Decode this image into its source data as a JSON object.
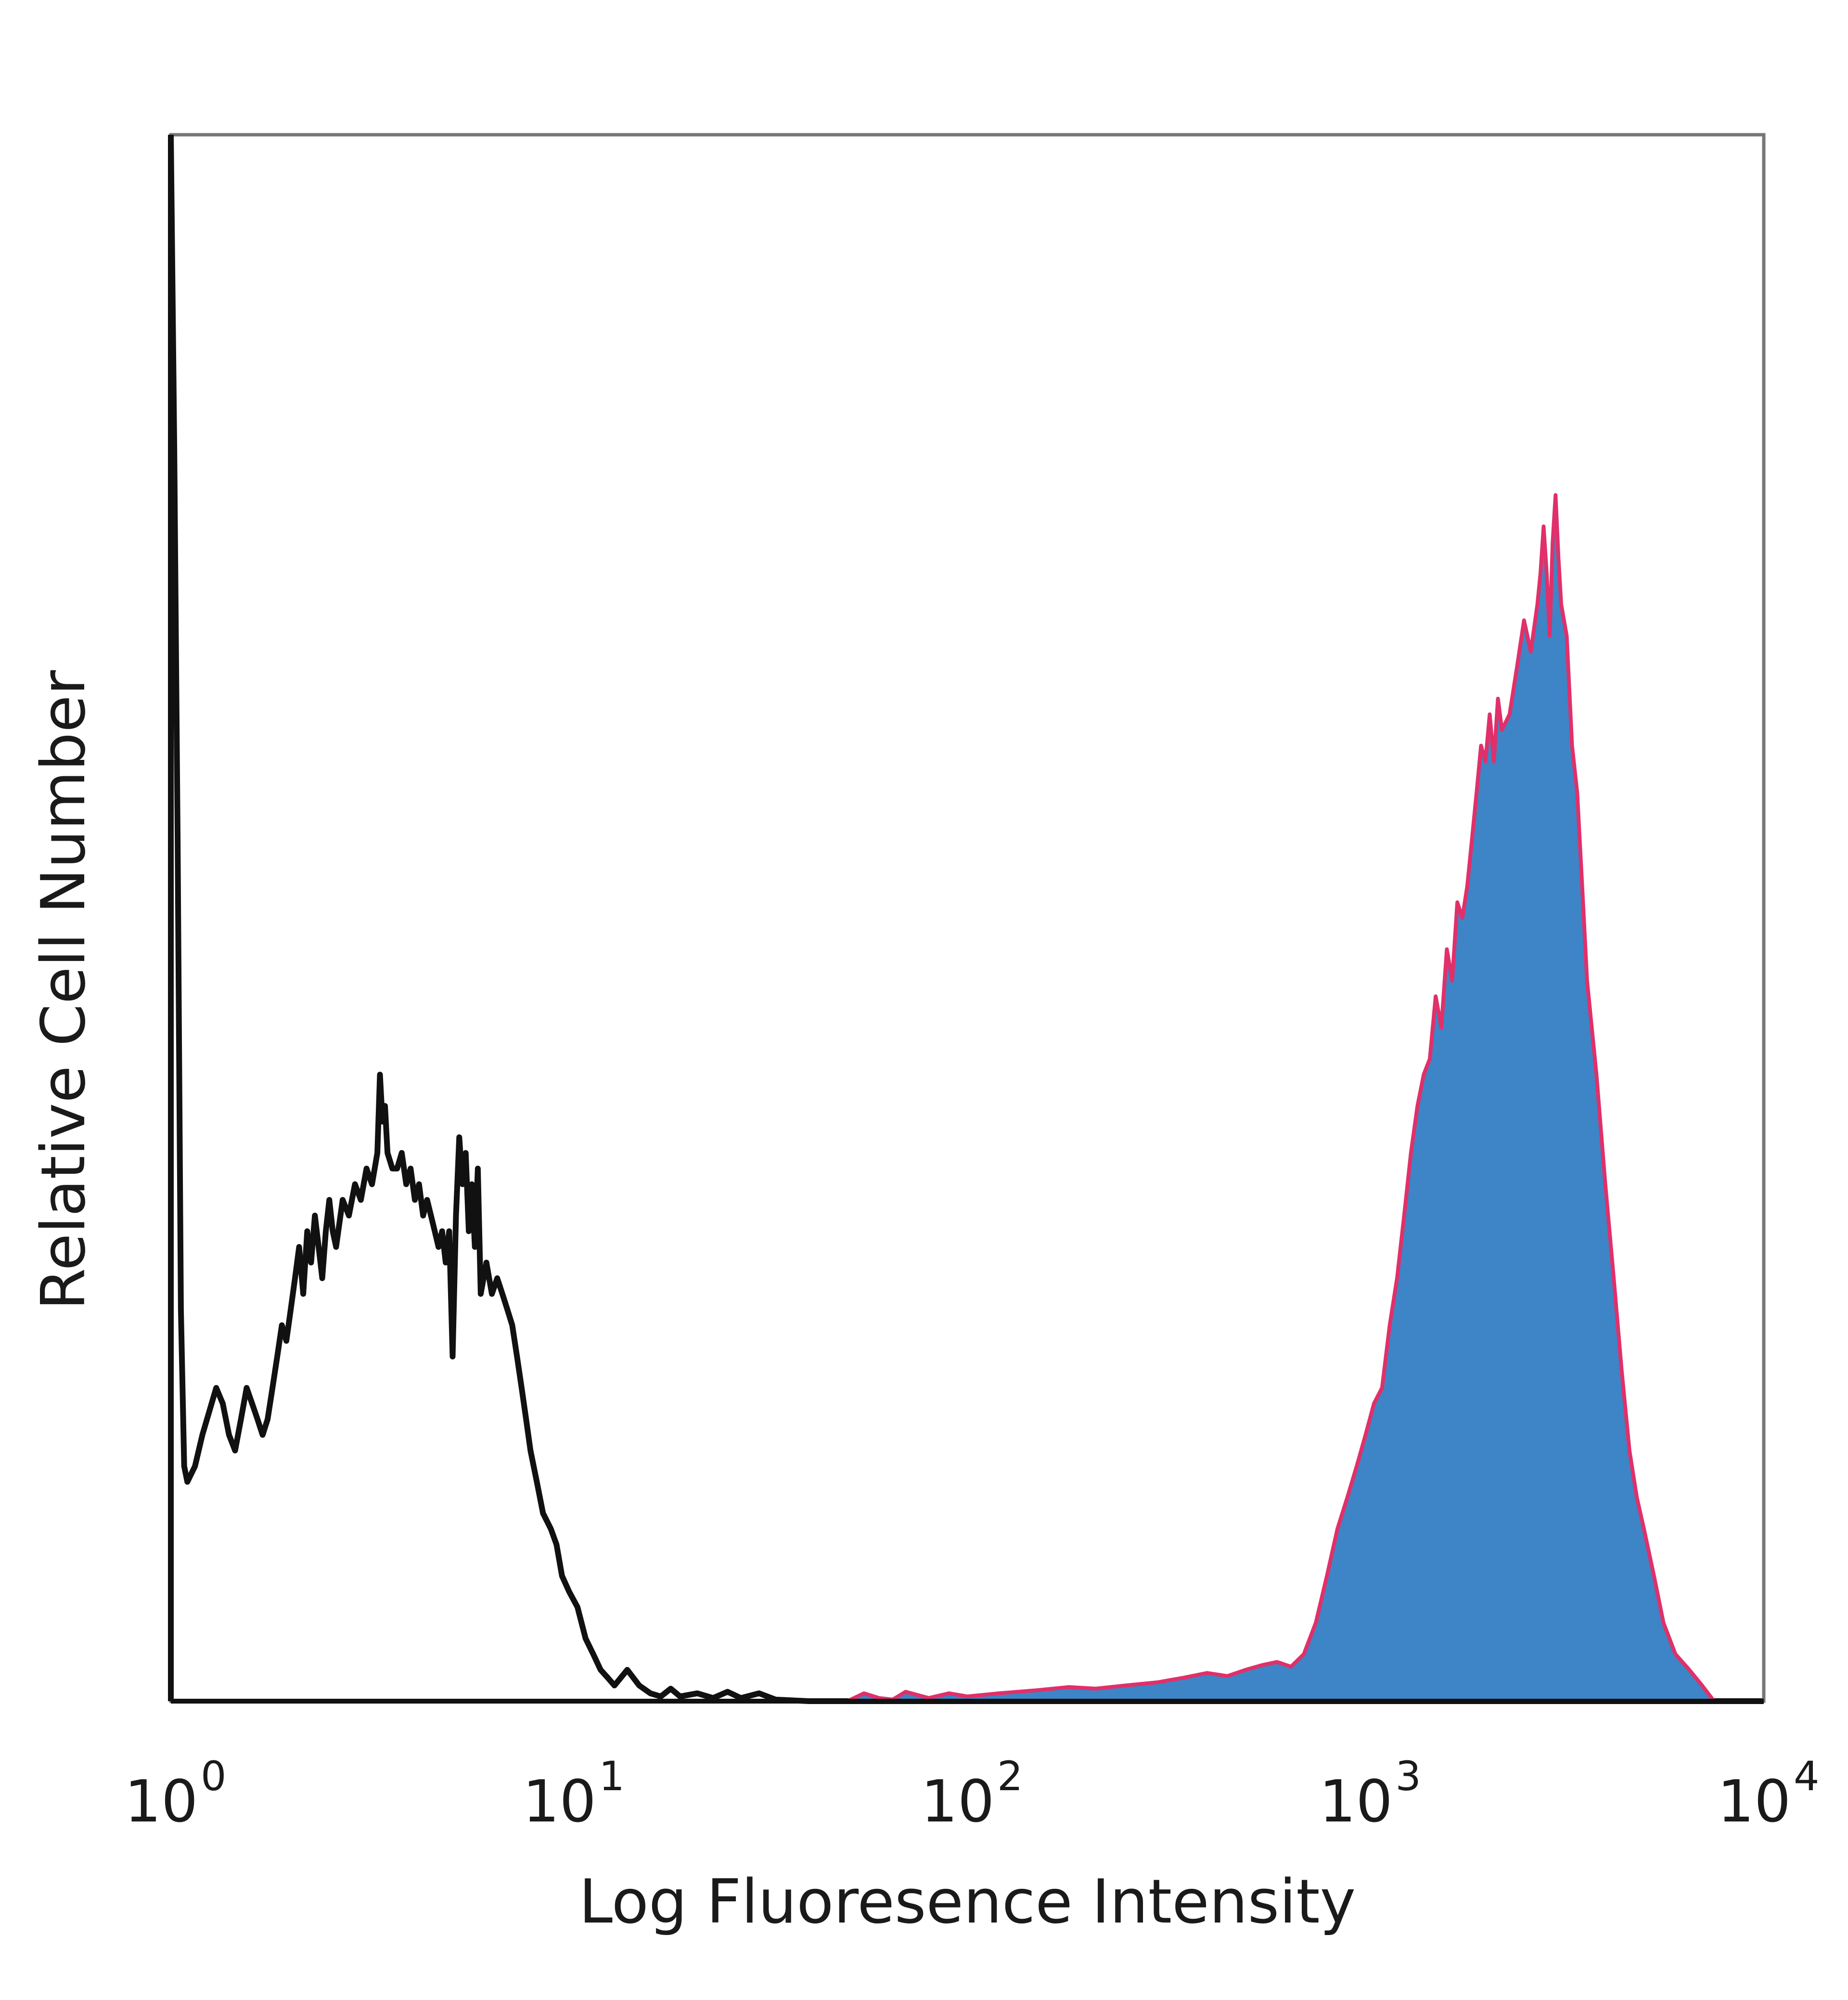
{
  "chart_data": {
    "type": "area",
    "title": "",
    "xlabel": "Log Fluoresence Intensity",
    "ylabel": "Relative Cell Number",
    "x_scale": "log",
    "xlim": [
      1,
      10000
    ],
    "ylim": [
      0,
      100
    ],
    "grid": false,
    "legend": "none",
    "x_ticks": [
      {
        "base": "10",
        "exp": "0",
        "value": 1
      },
      {
        "base": "10",
        "exp": "1",
        "value": 10
      },
      {
        "base": "10",
        "exp": "2",
        "value": 100
      },
      {
        "base": "10",
        "exp": "3",
        "value": 1000
      },
      {
        "base": "10",
        "exp": "4",
        "value": 10000
      }
    ],
    "series": [
      {
        "style": "outline",
        "color": "#111111",
        "points": [
          [
            1.0,
            100
          ],
          [
            1.02,
            80
          ],
          [
            1.04,
            55
          ],
          [
            1.06,
            25
          ],
          [
            1.08,
            15
          ],
          [
            1.1,
            14
          ],
          [
            1.15,
            15
          ],
          [
            1.2,
            17
          ],
          [
            1.3,
            20
          ],
          [
            1.35,
            19
          ],
          [
            1.4,
            17
          ],
          [
            1.45,
            16
          ],
          [
            1.5,
            18
          ],
          [
            1.55,
            20
          ],
          [
            1.6,
            19
          ],
          [
            1.65,
            18
          ],
          [
            1.7,
            17
          ],
          [
            1.75,
            18
          ],
          [
            1.8,
            20
          ],
          [
            1.85,
            22
          ],
          [
            1.9,
            24
          ],
          [
            1.95,
            23
          ],
          [
            2.0,
            25
          ],
          [
            2.05,
            27
          ],
          [
            2.1,
            29
          ],
          [
            2.15,
            26
          ],
          [
            2.2,
            30
          ],
          [
            2.25,
            28
          ],
          [
            2.3,
            31
          ],
          [
            2.35,
            29
          ],
          [
            2.4,
            27
          ],
          [
            2.45,
            30
          ],
          [
            2.5,
            32
          ],
          [
            2.55,
            30
          ],
          [
            2.6,
            29
          ],
          [
            2.7,
            32
          ],
          [
            2.8,
            31
          ],
          [
            2.9,
            33
          ],
          [
            3.0,
            32
          ],
          [
            3.1,
            34
          ],
          [
            3.2,
            33
          ],
          [
            3.3,
            35
          ],
          [
            3.35,
            40
          ],
          [
            3.4,
            37
          ],
          [
            3.45,
            38
          ],
          [
            3.5,
            35
          ],
          [
            3.6,
            34
          ],
          [
            3.7,
            34
          ],
          [
            3.8,
            35
          ],
          [
            3.9,
            33
          ],
          [
            4.0,
            34
          ],
          [
            4.1,
            32
          ],
          [
            4.2,
            33
          ],
          [
            4.3,
            31
          ],
          [
            4.4,
            32
          ],
          [
            4.5,
            31
          ],
          [
            4.6,
            30
          ],
          [
            4.7,
            29
          ],
          [
            4.8,
            30
          ],
          [
            4.9,
            28
          ],
          [
            5.0,
            30
          ],
          [
            5.1,
            22
          ],
          [
            5.2,
            31
          ],
          [
            5.3,
            36
          ],
          [
            5.4,
            33
          ],
          [
            5.5,
            35
          ],
          [
            5.6,
            30
          ],
          [
            5.7,
            33
          ],
          [
            5.8,
            29
          ],
          [
            5.9,
            34
          ],
          [
            6.0,
            26
          ],
          [
            6.2,
            28
          ],
          [
            6.4,
            26
          ],
          [
            6.6,
            27
          ],
          [
            6.8,
            26
          ],
          [
            7.0,
            25
          ],
          [
            7.2,
            24
          ],
          [
            7.4,
            22
          ],
          [
            7.6,
            20
          ],
          [
            7.8,
            18
          ],
          [
            8.0,
            16
          ],
          [
            8.3,
            14
          ],
          [
            8.6,
            12
          ],
          [
            9.0,
            11
          ],
          [
            9.3,
            10
          ],
          [
            9.6,
            8
          ],
          [
            10.0,
            7
          ],
          [
            10.5,
            6
          ],
          [
            11.0,
            4
          ],
          [
            11.5,
            3
          ],
          [
            12.0,
            2
          ],
          [
            12.5,
            1.5
          ],
          [
            13.0,
            1
          ],
          [
            14.0,
            2
          ],
          [
            15.0,
            1
          ],
          [
            16.0,
            0.5
          ],
          [
            17.0,
            0.3
          ],
          [
            18.0,
            0.8
          ],
          [
            19.0,
            0.3
          ],
          [
            21.0,
            0.5
          ],
          [
            23.0,
            0.2
          ],
          [
            25.0,
            0.6
          ],
          [
            27.0,
            0.2
          ],
          [
            30.0,
            0.5
          ],
          [
            33.0,
            0.1
          ],
          [
            40.0,
            0
          ],
          [
            10000,
            0
          ]
        ]
      },
      {
        "style": "filled",
        "color": "#3d85c6",
        "edge_color": "#e0306a",
        "points": [
          [
            1.0,
            0
          ],
          [
            50.0,
            0
          ],
          [
            55.0,
            0.5
          ],
          [
            60.0,
            0.2
          ],
          [
            65.0,
            0.1
          ],
          [
            70.0,
            0.6
          ],
          [
            80.0,
            0.2
          ],
          [
            90.0,
            0.5
          ],
          [
            100.0,
            0.3
          ],
          [
            120.0,
            0.5
          ],
          [
            150.0,
            0.7
          ],
          [
            180.0,
            0.9
          ],
          [
            210.0,
            0.8
          ],
          [
            250.0,
            1.0
          ],
          [
            300.0,
            1.2
          ],
          [
            350.0,
            1.5
          ],
          [
            400.0,
            1.8
          ],
          [
            450.0,
            1.6
          ],
          [
            500.0,
            2.0
          ],
          [
            550.0,
            2.3
          ],
          [
            600.0,
            2.5
          ],
          [
            650.0,
            2.2
          ],
          [
            700.0,
            3.0
          ],
          [
            750.0,
            5.0
          ],
          [
            800.0,
            8.0
          ],
          [
            850.0,
            11.0
          ],
          [
            900.0,
            13.0
          ],
          [
            950.0,
            15.0
          ],
          [
            1000.0,
            17.0
          ],
          [
            1050.0,
            19.0
          ],
          [
            1100.0,
            20.0
          ],
          [
            1150.0,
            24.0
          ],
          [
            1200.0,
            27.0
          ],
          [
            1250.0,
            31.0
          ],
          [
            1300.0,
            35.0
          ],
          [
            1350.0,
            38.0
          ],
          [
            1400.0,
            40.0
          ],
          [
            1450.0,
            41.0
          ],
          [
            1500.0,
            45.0
          ],
          [
            1550.0,
            43.0
          ],
          [
            1600.0,
            48.0
          ],
          [
            1650.0,
            46.0
          ],
          [
            1700.0,
            51.0
          ],
          [
            1750.0,
            50.0
          ],
          [
            1800.0,
            52.0
          ],
          [
            1850.0,
            55.0
          ],
          [
            1900.0,
            58.0
          ],
          [
            1950.0,
            61.0
          ],
          [
            2000.0,
            60.0
          ],
          [
            2050.0,
            63.0
          ],
          [
            2100.0,
            60.0
          ],
          [
            2150.0,
            64.0
          ],
          [
            2200.0,
            62.0
          ],
          [
            2300.0,
            63.0
          ],
          [
            2400.0,
            66.0
          ],
          [
            2500.0,
            69.0
          ],
          [
            2600.0,
            67.0
          ],
          [
            2700.0,
            70.0
          ],
          [
            2750.0,
            72.0
          ],
          [
            2800.0,
            75.0
          ],
          [
            2850.0,
            72.0
          ],
          [
            2900.0,
            68.0
          ],
          [
            2950.0,
            74.0
          ],
          [
            3000.0,
            77.0
          ],
          [
            3050.0,
            73.0
          ],
          [
            3100.0,
            70.0
          ],
          [
            3200.0,
            68.0
          ],
          [
            3300.0,
            61.0
          ],
          [
            3400.0,
            58.0
          ],
          [
            3500.0,
            52.0
          ],
          [
            3600.0,
            46.0
          ],
          [
            3800.0,
            40.0
          ],
          [
            4000.0,
            33.0
          ],
          [
            4200.0,
            27.0
          ],
          [
            4400.0,
            21.0
          ],
          [
            4600.0,
            16.0
          ],
          [
            4800.0,
            13.0
          ],
          [
            5000.0,
            11.0
          ],
          [
            5300.0,
            8.0
          ],
          [
            5600.0,
            5.0
          ],
          [
            6000.0,
            3.0
          ],
          [
            6500.0,
            2.0
          ],
          [
            7000.0,
            1.0
          ],
          [
            7500.0,
            0
          ]
        ]
      }
    ]
  }
}
